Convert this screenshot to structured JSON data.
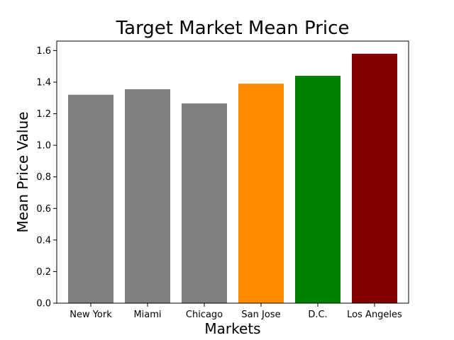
{
  "chart_data": {
    "type": "bar",
    "title": "Target Market Mean Price",
    "xlabel": "Markets",
    "ylabel": "Mean Price Value",
    "categories": [
      "New York",
      "Miami",
      "Chicago",
      "San Jose",
      "D.C.",
      "Los Angeles"
    ],
    "values": [
      1.32,
      1.355,
      1.265,
      1.39,
      1.44,
      1.58
    ],
    "colors": [
      "#808080",
      "#808080",
      "#808080",
      "#ff8c00",
      "#008000",
      "#800000"
    ],
    "ylim": [
      0,
      1.66
    ],
    "yticks": [
      "0.0",
      "0.2",
      "0.4",
      "0.6",
      "0.8",
      "1.0",
      "1.2",
      "1.4",
      "1.6"
    ],
    "grid": false,
    "legend": "none"
  }
}
